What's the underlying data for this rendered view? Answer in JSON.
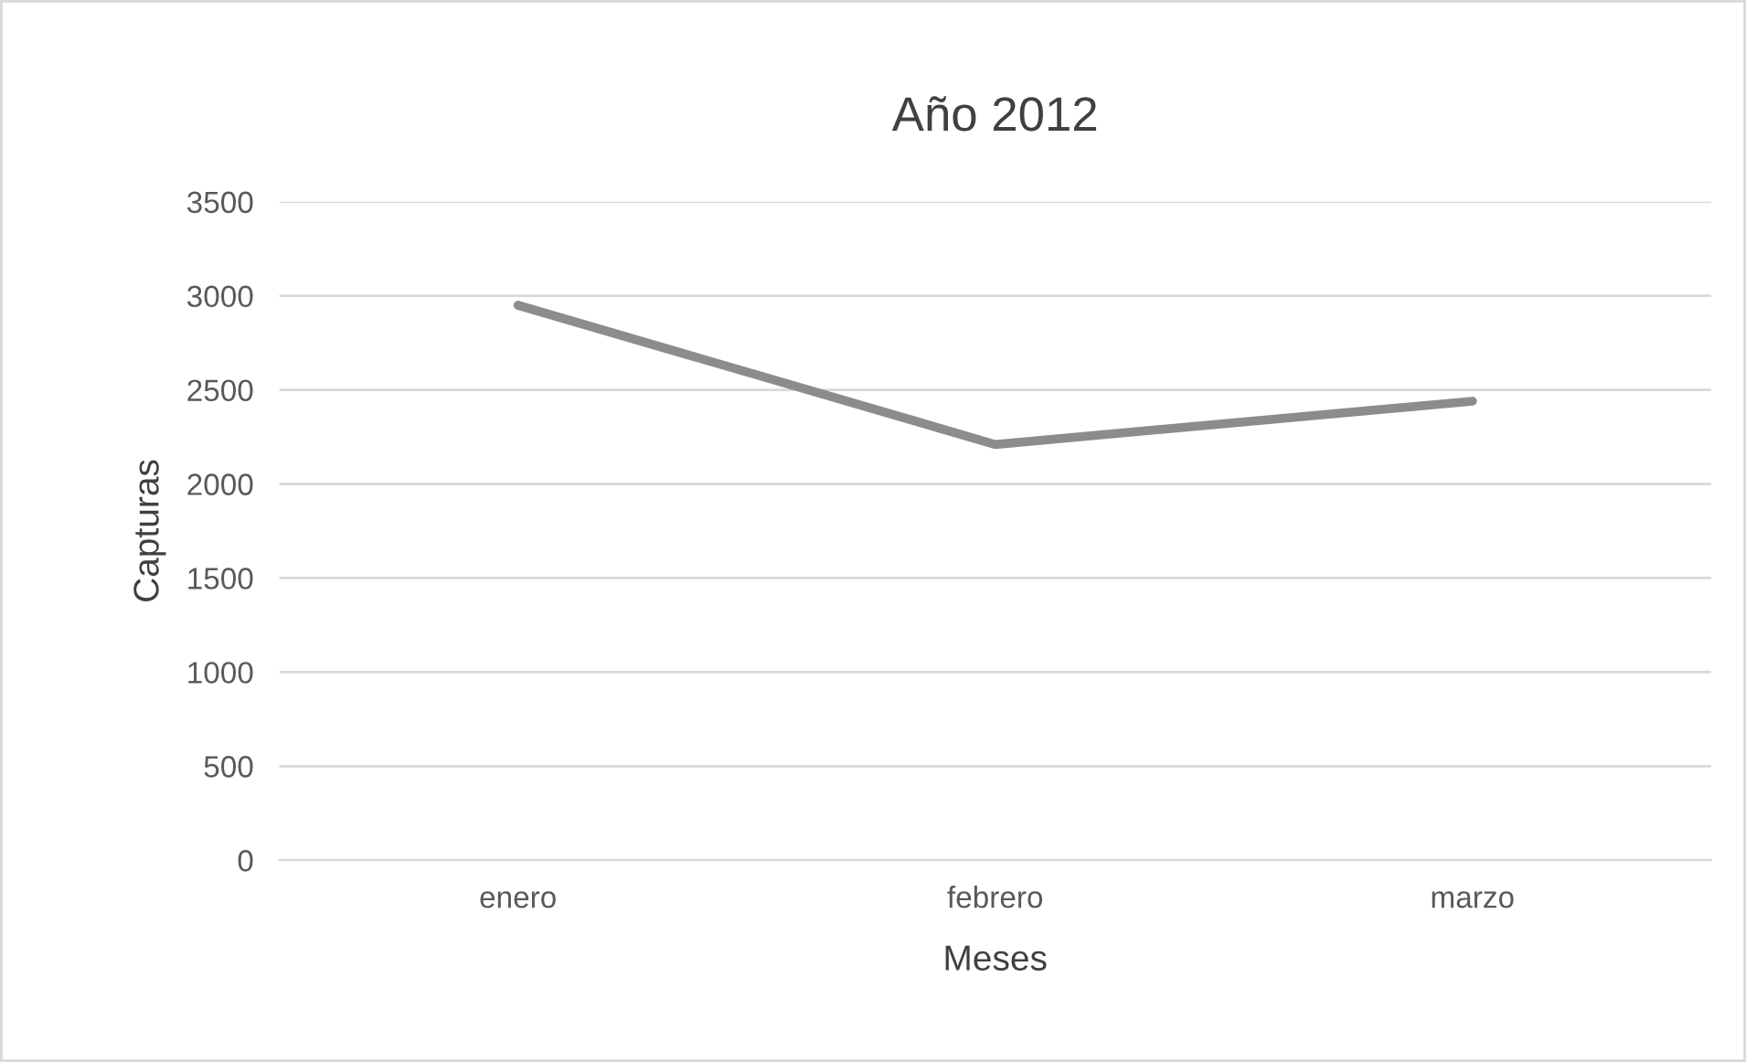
{
  "chart_data": {
    "type": "line",
    "title": "Año 2012",
    "xlabel": "Meses",
    "ylabel": "Capturas",
    "categories": [
      "enero",
      "febrero",
      "marzo"
    ],
    "series": [
      {
        "color": "#8c8c8c",
        "values": [
          2950,
          2210,
          2440
        ]
      }
    ],
    "ylim": [
      0,
      3500
    ],
    "yticks": [
      0,
      500,
      1000,
      1500,
      2000,
      2500,
      3000,
      3500
    ],
    "grid": "y",
    "legend": false,
    "marker": "none",
    "line_style": "solid"
  }
}
